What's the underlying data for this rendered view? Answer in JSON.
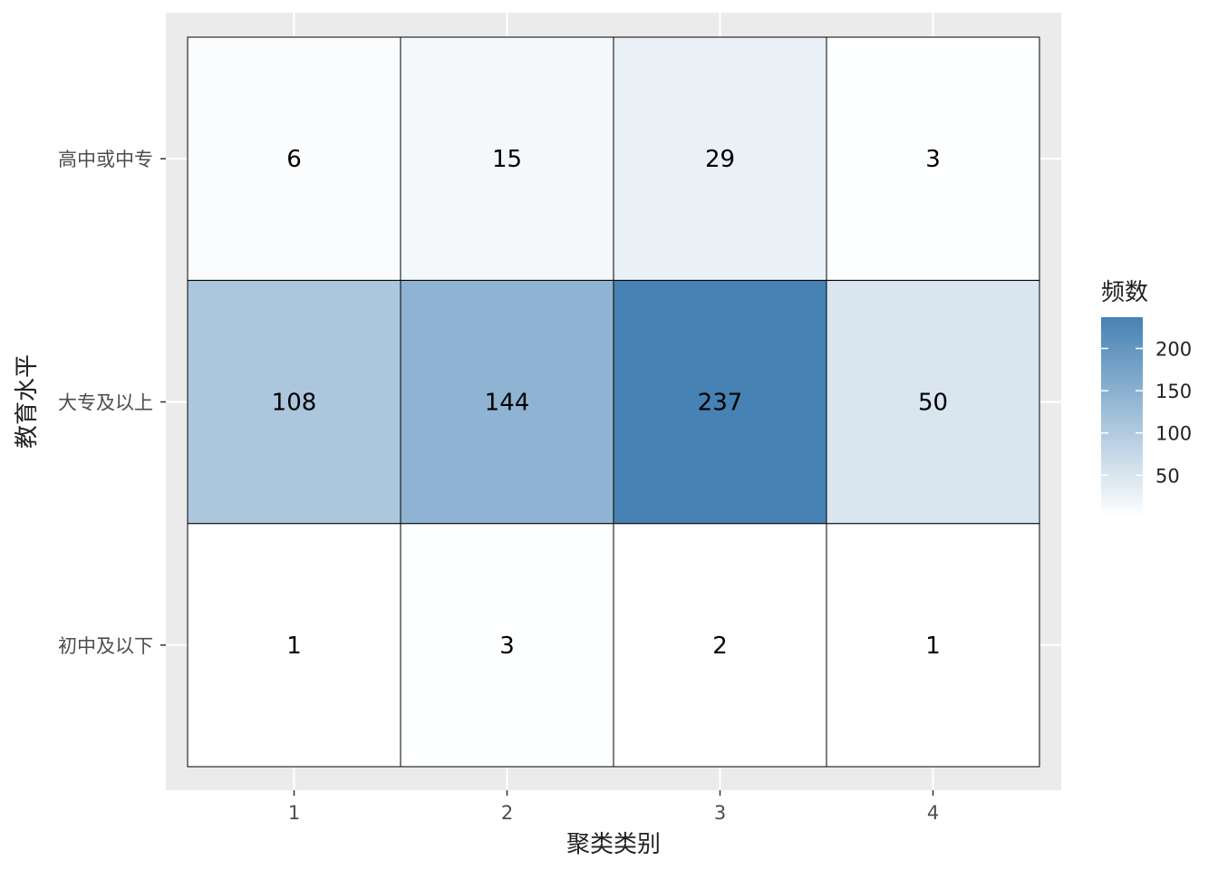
{
  "chart_data": {
    "type": "heatmap",
    "x_categories": [
      "1",
      "2",
      "3",
      "4"
    ],
    "y_categories": [
      "初中及以下",
      "大专及以上",
      "高中或中专"
    ],
    "values": [
      [
        1,
        3,
        2,
        1
      ],
      [
        108,
        144,
        237,
        50
      ],
      [
        6,
        15,
        29,
        3
      ]
    ],
    "xlabel": "聚类类别",
    "ylabel": "教育水平",
    "legend": {
      "title": "频数",
      "ticks": [
        50,
        100,
        150,
        200
      ],
      "tick_labels": [
        "50",
        "100",
        "150",
        "200"
      ],
      "min": 1,
      "max": 237,
      "position": "right"
    },
    "colors": {
      "low": "#ffffff",
      "high": "#4682b4",
      "panel_background": "#ebebeb",
      "grid": "#ffffff",
      "tile_border": "#000000"
    },
    "grid": true
  }
}
